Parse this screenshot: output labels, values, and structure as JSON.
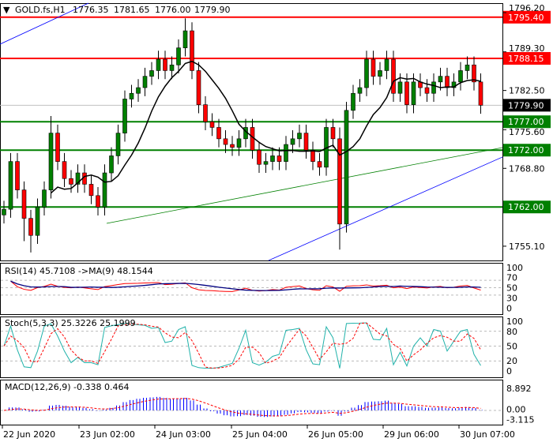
{
  "header": {
    "symbol": "GOLD.fs,H1",
    "open": "1776.35",
    "high": "1781.65",
    "low": "1776.00",
    "close": "1779.90"
  },
  "colors": {
    "bull": "#008000",
    "bear": "#ff0000",
    "candle_outline": "#000000",
    "resistance": "#ff0000",
    "support": "#008000",
    "trend_green": "#008000",
    "trend_blue": "#0000ff",
    "ma": "#000000",
    "rsi": "#ff0000",
    "rsi_ma": "#000080",
    "stoch_main": "#20b2aa",
    "stoch_signal": "#ff0000",
    "macd_hist": "#0000ff",
    "macd_signal": "#ff0000"
  },
  "chart_data": {
    "type": "candlestick",
    "ylim": [
      1752,
      1798
    ],
    "price_ticks": [
      "1796.20",
      "1789.30",
      "1782.50",
      "1775.60",
      "1768.80",
      "1755.10"
    ],
    "time_labels": [
      "22 Jun 2020",
      "23 Jun 02:00",
      "24 Jun 03:00",
      "25 Jun 04:00",
      "26 Jun 05:00",
      "29 Jun 06:00",
      "30 Jun 07:00"
    ],
    "closes": [
      1761.6,
      1770,
      1765,
      1760,
      1757,
      1762,
      1765,
      1775,
      1770,
      1767,
      1766,
      1768,
      1766,
      1764,
      1762,
      1768,
      1771,
      1775,
      1781,
      1782,
      1783,
      1785,
      1786,
      1788,
      1786,
      1787,
      1790,
      1793,
      1786,
      1780,
      1777,
      1776,
      1774,
      1773,
      1772.5,
      1774,
      1776,
      1772,
      1769.5,
      1770,
      1771,
      1770,
      1773,
      1774,
      1775,
      1772,
      1770,
      1769,
      1776,
      1774,
      1759,
      1779,
      1782,
      1783,
      1788,
      1785,
      1786,
      1788,
      1782,
      1784,
      1780,
      1784,
      1783,
      1782,
      1784,
      1785,
      1783,
      1784,
      1786,
      1787,
      1784,
      1779.9
    ],
    "extreme_highs": {
      "27": 1795.2,
      "7": 1778,
      "50": 1776
    },
    "extreme_lows": {
      "4": 1754,
      "50": 1754.5,
      "3": 1756
    },
    "horizontal_levels": [
      {
        "price": 1795.4,
        "label": "1795.40",
        "kind": "resistance"
      },
      {
        "price": 1788.15,
        "label": "1788.15",
        "kind": "resistance"
      },
      {
        "price": 1777.0,
        "label": "1777.00",
        "kind": "support"
      },
      {
        "price": 1772.0,
        "label": "1772.00",
        "kind": "support"
      },
      {
        "price": 1762.0,
        "label": "1762.00",
        "kind": "support"
      }
    ],
    "current_price": "1779.90",
    "indicators": {
      "rsi": {
        "label": "RSI(14) 45.7108  ->MA(9) 48.1544",
        "levels": [
          "100",
          "70",
          "50",
          "30",
          "0"
        ]
      },
      "stoch": {
        "label": "Stoch(5,3,3) 25.3226 25.1999",
        "levels": [
          "100",
          "80",
          "50",
          "20",
          "0"
        ]
      },
      "macd": {
        "label": "MACD(12,26,9) -0.338 0.464",
        "levels": [
          "8.892",
          "0.00",
          "-3.115"
        ]
      }
    }
  }
}
